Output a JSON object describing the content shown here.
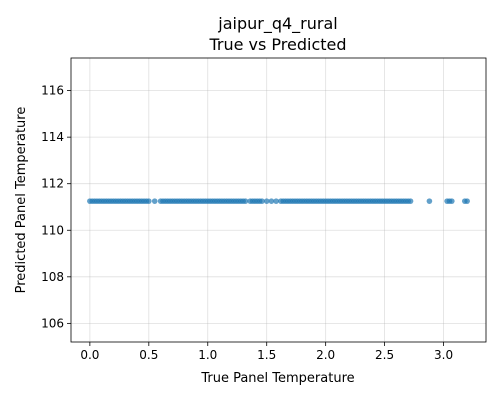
{
  "chart_data": {
    "type": "scatter",
    "title_line1": "jaipur_q4_rural",
    "title_line2": "True vs Predicted",
    "xlabel": "True Panel Temperature",
    "ylabel": "Predicted Panel Temperature",
    "xlim": [
      -0.16,
      3.36
    ],
    "ylim": [
      105.2,
      117.4
    ],
    "x_ticks": [
      0.0,
      0.5,
      1.0,
      1.5,
      2.0,
      2.5,
      3.0
    ],
    "x_tick_labels": [
      "0.0",
      "0.5",
      "1.0",
      "1.5",
      "2.0",
      "2.5",
      "3.0"
    ],
    "y_ticks": [
      106,
      108,
      110,
      112,
      114,
      116
    ],
    "y_tick_labels": [
      "106",
      "108",
      "110",
      "112",
      "114",
      "116"
    ],
    "grid": true,
    "point_color": "#1f77b4",
    "predicted_value": 111.25,
    "x": [
      0.0,
      0.02,
      0.04,
      0.06,
      0.08,
      0.1,
      0.12,
      0.14,
      0.16,
      0.18,
      0.2,
      0.22,
      0.24,
      0.26,
      0.28,
      0.3,
      0.32,
      0.34,
      0.36,
      0.38,
      0.4,
      0.42,
      0.44,
      0.46,
      0.48,
      0.5,
      0.55,
      0.6,
      0.62,
      0.64,
      0.66,
      0.68,
      0.7,
      0.72,
      0.74,
      0.76,
      0.78,
      0.8,
      0.82,
      0.84,
      0.86,
      0.88,
      0.9,
      0.92,
      0.94,
      0.96,
      0.98,
      1.0,
      1.02,
      1.04,
      1.06,
      1.08,
      1.1,
      1.12,
      1.14,
      1.16,
      1.18,
      1.2,
      1.22,
      1.24,
      1.26,
      1.28,
      1.3,
      1.32,
      1.36,
      1.38,
      1.4,
      1.42,
      1.44,
      1.46,
      1.5,
      1.54,
      1.58,
      1.62,
      1.64,
      1.66,
      1.68,
      1.7,
      1.72,
      1.74,
      1.76,
      1.78,
      1.8,
      1.82,
      1.84,
      1.86,
      1.88,
      1.9,
      1.92,
      1.94,
      1.96,
      1.98,
      2.0,
      2.02,
      2.04,
      2.06,
      2.08,
      2.1,
      2.12,
      2.14,
      2.16,
      2.18,
      2.2,
      2.22,
      2.24,
      2.26,
      2.28,
      2.3,
      2.32,
      2.34,
      2.36,
      2.38,
      2.4,
      2.42,
      2.44,
      2.46,
      2.48,
      2.5,
      2.52,
      2.54,
      2.56,
      2.58,
      2.6,
      2.62,
      2.64,
      2.66,
      2.68,
      2.7,
      2.72,
      2.88,
      3.03,
      3.05,
      3.07,
      3.18,
      3.2
    ]
  }
}
